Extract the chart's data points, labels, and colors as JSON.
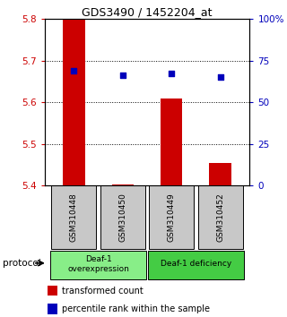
{
  "title": "GDS3490 / 1452204_at",
  "samples": [
    "GSM310448",
    "GSM310450",
    "GSM310449",
    "GSM310452"
  ],
  "bar_values": [
    5.8,
    5.403,
    5.608,
    5.455
  ],
  "bar_base": 5.4,
  "dot_values": [
    5.675,
    5.665,
    5.67,
    5.66
  ],
  "ylim_left": [
    5.4,
    5.8
  ],
  "ylim_right": [
    0,
    100
  ],
  "yticks_left": [
    5.4,
    5.5,
    5.6,
    5.7,
    5.8
  ],
  "yticks_right": [
    0,
    25,
    50,
    75,
    100
  ],
  "ytick_labels_right": [
    "0",
    "25",
    "50",
    "75",
    "100%"
  ],
  "bar_color": "#cc0000",
  "dot_color": "#0000bb",
  "grid_color": "#000000",
  "groups": [
    {
      "label": "Deaf-1\noverexpression",
      "samples": [
        0,
        1
      ],
      "color": "#88ee88"
    },
    {
      "label": "Deaf-1 deficiency",
      "samples": [
        2,
        3
      ],
      "color": "#44cc44"
    }
  ],
  "protocol_label": "protocol",
  "legend_bar_label": "transformed count",
  "legend_dot_label": "percentile rank within the sample",
  "background_color": "#ffffff",
  "tick_box_color": "#c8c8c8"
}
